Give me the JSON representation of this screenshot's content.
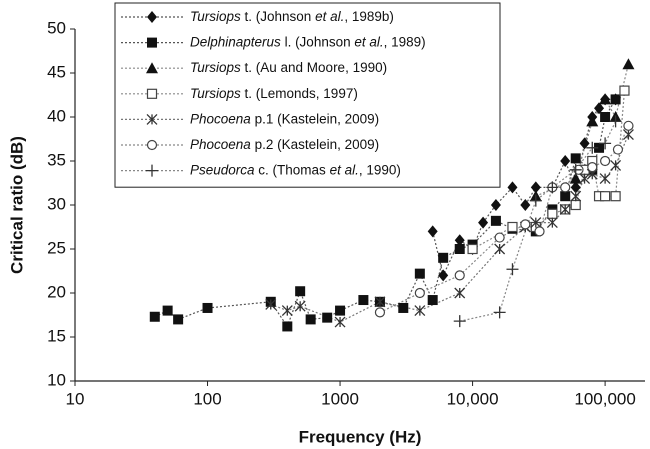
{
  "chart_data": {
    "type": "line",
    "x_label": "Frequency (Hz)",
    "y_label": "Critical ratio (dB)",
    "xscale": "log",
    "xlim": [
      10,
      200000
    ],
    "ylim": [
      10,
      50
    ],
    "xticks": [
      10,
      100,
      1000,
      {
        "value": 10000,
        "label": "10,000"
      },
      {
        "value": 100000,
        "label": "100,000"
      }
    ],
    "yticks": [
      10,
      15,
      20,
      25,
      30,
      35,
      40,
      45,
      50
    ],
    "legend": "upper left",
    "series": [
      {
        "name": "Tursiops t. (Johnson et al., 1989b)",
        "color": "#111111",
        "line_color": "#555555",
        "marker": "diamond",
        "x": [
          5000,
          6000,
          8000,
          10000,
          12000,
          15000,
          20000,
          25000,
          30000,
          40000,
          50000,
          60000,
          70000,
          80000,
          90000,
          100000,
          120000
        ],
        "values": [
          27,
          22,
          26,
          25,
          28,
          30,
          32,
          30,
          32,
          32,
          35,
          32,
          37,
          40,
          41,
          42,
          42
        ]
      },
      {
        "name": "Delphinapterus l. (Johnson et al., 1989)",
        "color": "#111111",
        "line_color": "#555555",
        "marker": "square",
        "x": [
          40,
          50,
          60,
          100,
          300,
          400,
          500,
          600,
          800,
          1000,
          1500,
          2000,
          3000,
          4000,
          5000,
          6000,
          8000,
          10000,
          15000,
          20000,
          30000,
          40000,
          50000,
          60000,
          80000,
          90000,
          100000,
          120000
        ],
        "values": [
          17.3,
          18,
          17,
          18.3,
          19,
          16.2,
          20.2,
          17,
          17.2,
          18,
          19.2,
          19,
          18.3,
          22.2,
          19.2,
          24,
          25,
          25.5,
          28.2,
          27.3,
          27,
          29.5,
          31,
          35.3,
          34,
          36.5,
          40,
          42
        ]
      },
      {
        "name": "Tursiops t. (Au and Moore, 1990)",
        "color": "#111111",
        "line_color": "#888888",
        "marker": "triangle",
        "x": [
          30000,
          60000,
          80000,
          100000,
          120000,
          150000
        ],
        "values": [
          31,
          33,
          39.5,
          42,
          40,
          46
        ]
      },
      {
        "name": "Tursiops t. (Lemonds, 1997)",
        "color": "#444444",
        "line_color": "#888888",
        "marker": "square-open",
        "x": [
          10000,
          20000,
          30000,
          40000,
          50000,
          60000,
          70000,
          80000,
          90000,
          100000,
          120000,
          140000
        ],
        "values": [
          25,
          27.5,
          27.5,
          29,
          29.5,
          30,
          34,
          35,
          31,
          31,
          31,
          43
        ]
      },
      {
        "name": "Phocoena p.1 (Kastelein, 2009)",
        "color": "#333333",
        "line_color": "#777777",
        "marker": "x",
        "x": [
          300,
          400,
          500,
          1000,
          2000,
          4000,
          8000,
          16000,
          25000,
          30000,
          40000,
          50000,
          60000,
          70000,
          80000,
          100000,
          120000,
          150000
        ],
        "values": [
          18.7,
          18,
          18.5,
          16.7,
          19,
          18,
          20,
          25,
          27.5,
          28,
          28,
          29.5,
          31,
          33,
          33.5,
          33,
          34.5,
          38
        ]
      },
      {
        "name": "Phocoena p.2 (Kastelein, 2009)",
        "color": "#444444",
        "line_color": "#888888",
        "marker": "circle-open",
        "x": [
          2000,
          4000,
          8000,
          16000,
          25000,
          32000,
          40000,
          50000,
          63000,
          80000,
          100000,
          125000,
          150000
        ],
        "values": [
          17.8,
          20,
          22,
          26.3,
          27.8,
          27,
          32,
          32,
          34,
          34.3,
          35,
          36.3,
          39
        ]
      },
      {
        "name": "Pseudorca c. (Thomas et al., 1990)",
        "color": "#333333",
        "line_color": "#888888",
        "marker": "plus",
        "x": [
          8000,
          16000,
          20000,
          30000,
          40000,
          60000,
          80000,
          100000,
          120000
        ],
        "values": [
          16.8,
          17.8,
          22.7,
          30.5,
          32,
          34,
          36.5,
          37,
          39.5
        ]
      }
    ]
  }
}
